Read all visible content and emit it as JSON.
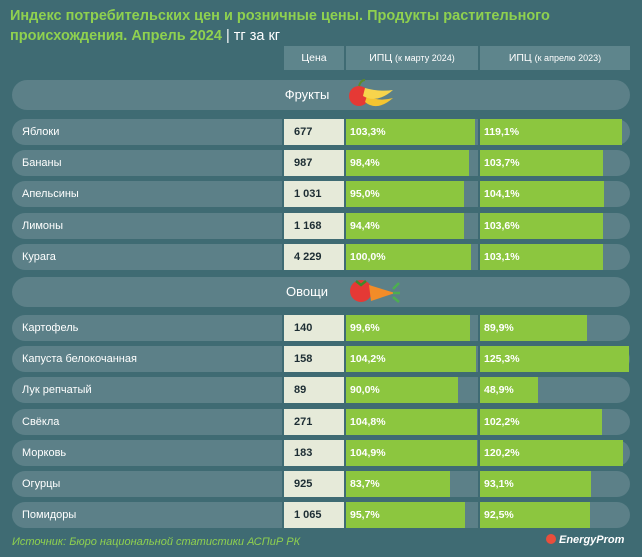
{
  "title": "Индекс потребительских цен и розничные цены. Продукты растительного происхождения. Апрель 2024",
  "unit": "| тг за кг",
  "headers": {
    "price": "Цена",
    "cpi_march_main": "ИПЦ",
    "cpi_march_sub": "(к марту 2024)",
    "cpi_april_main": "ИПЦ",
    "cpi_april_sub": "(к апрелю 2023)"
  },
  "chart_data": {
    "type": "table",
    "columns": [
      "Цена",
      "ИПЦ (к марту 2024)",
      "ИПЦ (к апрелю 2023)"
    ],
    "sections": [
      {
        "name": "Фрукты",
        "rows": [
          {
            "name": "Яблоки",
            "price": "677",
            "cpi_march": 103.3,
            "cpi_march_label": "103,3%",
            "cpi_april": 119.1,
            "cpi_april_label": "119,1%"
          },
          {
            "name": "Бананы",
            "price": "987",
            "cpi_march": 98.4,
            "cpi_march_label": "98,4%",
            "cpi_april": 103.7,
            "cpi_april_label": "103,7%"
          },
          {
            "name": "Апельсины",
            "price": "1 031",
            "cpi_march": 95.0,
            "cpi_march_label": "95,0%",
            "cpi_april": 104.1,
            "cpi_april_label": "104,1%"
          },
          {
            "name": "Лимоны",
            "price": "1 168",
            "cpi_march": 94.4,
            "cpi_march_label": "94,4%",
            "cpi_april": 103.6,
            "cpi_april_label": "103,6%"
          },
          {
            "name": "Курага",
            "price": "4 229",
            "cpi_march": 100.0,
            "cpi_march_label": "100,0%",
            "cpi_april": 103.1,
            "cpi_april_label": "103,1%"
          }
        ]
      },
      {
        "name": "Овощи",
        "rows": [
          {
            "name": "Картофель",
            "price": "140",
            "cpi_march": 99.6,
            "cpi_march_label": "99,6%",
            "cpi_april": 89.9,
            "cpi_april_label": "89,9%"
          },
          {
            "name": "Капуста белокочанная",
            "price": "158",
            "cpi_march": 104.2,
            "cpi_march_label": "104,2%",
            "cpi_april": 125.3,
            "cpi_april_label": "125,3%"
          },
          {
            "name": "Лук репчатый",
            "price": "89",
            "cpi_march": 90.0,
            "cpi_march_label": "90,0%",
            "cpi_april": 48.9,
            "cpi_april_label": "48,9%"
          },
          {
            "name": "Свёкла",
            "price": "271",
            "cpi_march": 104.8,
            "cpi_march_label": "104,8%",
            "cpi_april": 102.2,
            "cpi_april_label": "102,2%"
          },
          {
            "name": "Морковь",
            "price": "183",
            "cpi_march": 104.9,
            "cpi_march_label": "104,9%",
            "cpi_april": 120.2,
            "cpi_april_label": "120,2%"
          },
          {
            "name": "Огурцы",
            "price": "925",
            "cpi_march": 83.7,
            "cpi_march_label": "83,7%",
            "cpi_april": 93.1,
            "cpi_april_label": "93,1%"
          },
          {
            "name": "Помидоры",
            "price": "1 065",
            "cpi_march": 95.7,
            "cpi_march_label": "95,7%",
            "cpi_april": 92.5,
            "cpi_april_label": "92,5%"
          }
        ]
      }
    ]
  },
  "icons": {
    "fruits": "fruit-bowl-icon",
    "vegetables": "vegetables-icon",
    "logo": "energyprom-logo-icon"
  },
  "colors": {
    "background": "#3f6b73",
    "bar": "#8cc63f",
    "title": "#8fd14f",
    "price_cell": "#e6ead9"
  },
  "footer": "Источник: Бюро национальной статистики АСПиР РК",
  "logo_text": "EnergyProm"
}
